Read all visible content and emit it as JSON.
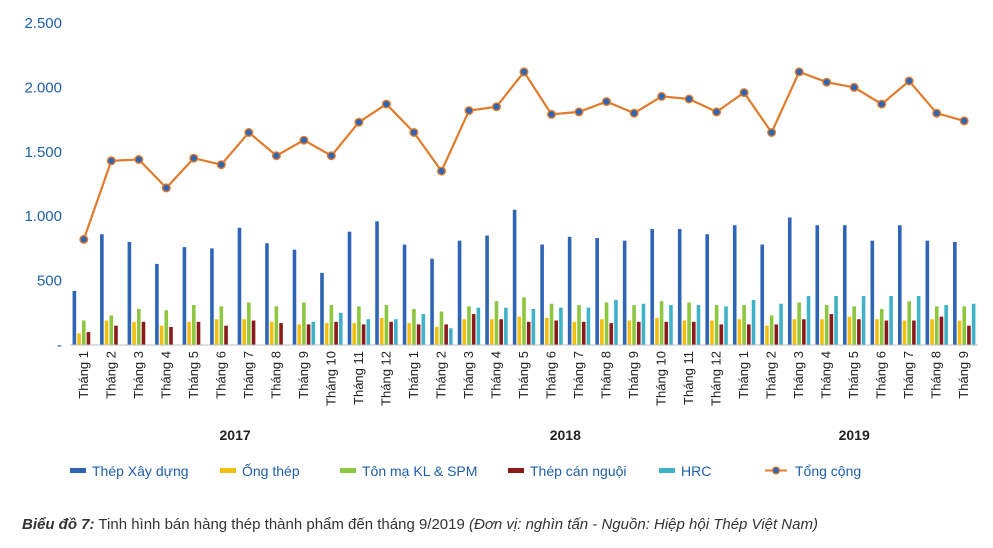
{
  "chart_data": {
    "type": "bar+line",
    "ylim": [
      0,
      2500
    ],
    "y_ticks": [
      {
        "value": 0,
        "label": "-"
      },
      {
        "value": 500,
        "label": "500"
      },
      {
        "value": 1000,
        "label": "1.000"
      },
      {
        "value": 1500,
        "label": "1.500"
      },
      {
        "value": 2000,
        "label": "2.000"
      },
      {
        "value": 2500,
        "label": "2.500"
      }
    ],
    "grid": false,
    "legend_position": "bottom",
    "categories": [
      "Tháng 1",
      "Tháng 2",
      "Tháng 3",
      "Tháng 4",
      "Tháng 5",
      "Tháng 6",
      "Tháng 7",
      "Tháng 8",
      "Tháng 9",
      "Tháng 10",
      "Tháng 11",
      "Tháng 12",
      "Tháng 1",
      "Tháng 2",
      "Tháng 3",
      "Tháng 4",
      "Tháng 5",
      "Tháng 6",
      "Tháng 7",
      "Tháng 8",
      "Tháng 9",
      "Tháng 10",
      "Tháng 11",
      "Tháng 12",
      "Tháng 1",
      "Tháng 2",
      "Tháng 3",
      "Tháng 4",
      "Tháng 5",
      "Tháng 6",
      "Tháng 7",
      "Tháng 8",
      "Tháng 9"
    ],
    "groups": [
      {
        "label": "2017",
        "from": 0,
        "to": 11
      },
      {
        "label": "2018",
        "from": 12,
        "to": 23
      },
      {
        "label": "2019",
        "from": 24,
        "to": 32
      }
    ],
    "bar_series": [
      {
        "name": "Thép Xây dựng",
        "color": "#2e65b4",
        "values": [
          420,
          860,
          800,
          630,
          760,
          750,
          910,
          790,
          740,
          560,
          880,
          960,
          780,
          670,
          810,
          850,
          1050,
          780,
          840,
          830,
          810,
          900,
          900,
          860,
          930,
          780,
          990,
          930,
          930,
          810,
          930,
          810,
          800
        ]
      },
      {
        "name": "Ống thép",
        "color": "#f2bf0f",
        "values": [
          90,
          190,
          180,
          150,
          180,
          200,
          200,
          180,
          160,
          170,
          170,
          210,
          170,
          140,
          200,
          200,
          220,
          210,
          180,
          200,
          190,
          210,
          190,
          190,
          200,
          150,
          200,
          200,
          220,
          200,
          190,
          200,
          190
        ]
      },
      {
        "name": "Tôn mạ KL & SPM",
        "color": "#8dc63f",
        "values": [
          190,
          230,
          280,
          270,
          310,
          300,
          330,
          300,
          330,
          310,
          300,
          310,
          280,
          260,
          300,
          340,
          370,
          320,
          310,
          330,
          310,
          340,
          330,
          310,
          310,
          230,
          330,
          310,
          300,
          280,
          340,
          300,
          300
        ]
      },
      {
        "name": "Thép cán nguội",
        "color": "#8b1a1a",
        "values": [
          100,
          150,
          180,
          140,
          180,
          150,
          190,
          170,
          160,
          180,
          160,
          180,
          160,
          160,
          240,
          200,
          180,
          190,
          180,
          170,
          180,
          180,
          180,
          160,
          160,
          160,
          200,
          240,
          200,
          190,
          190,
          220,
          150
        ]
      },
      {
        "name": "HRC",
        "color": "#3fb2c8",
        "values": [
          0,
          0,
          0,
          0,
          0,
          0,
          0,
          0,
          180,
          250,
          200,
          200,
          240,
          130,
          290,
          290,
          280,
          290,
          290,
          350,
          320,
          310,
          310,
          300,
          350,
          320,
          380,
          380,
          380,
          380,
          380,
          310,
          320
        ]
      }
    ],
    "line_series": {
      "name": "Tổng cộng",
      "color": "#e07b2c",
      "marker_color": "#2e65b4",
      "values": [
        820,
        1430,
        1440,
        1220,
        1450,
        1400,
        1650,
        1470,
        1590,
        1470,
        1730,
        1870,
        1650,
        1350,
        1820,
        1850,
        2120,
        1790,
        1810,
        1890,
        1800,
        1930,
        1910,
        1810,
        1960,
        1650,
        2120,
        2040,
        2000,
        1870,
        2050,
        1800,
        1740
      ]
    }
  },
  "caption": {
    "lead": "Biểu đồ 7:",
    "text": " Tinh hình bán hàng thép thành phẩm đến tháng 9/2019 ",
    "source": "(Đơn vị: nghìn tấn - Nguồn: Hiệp hội Thép Việt Nam)"
  }
}
